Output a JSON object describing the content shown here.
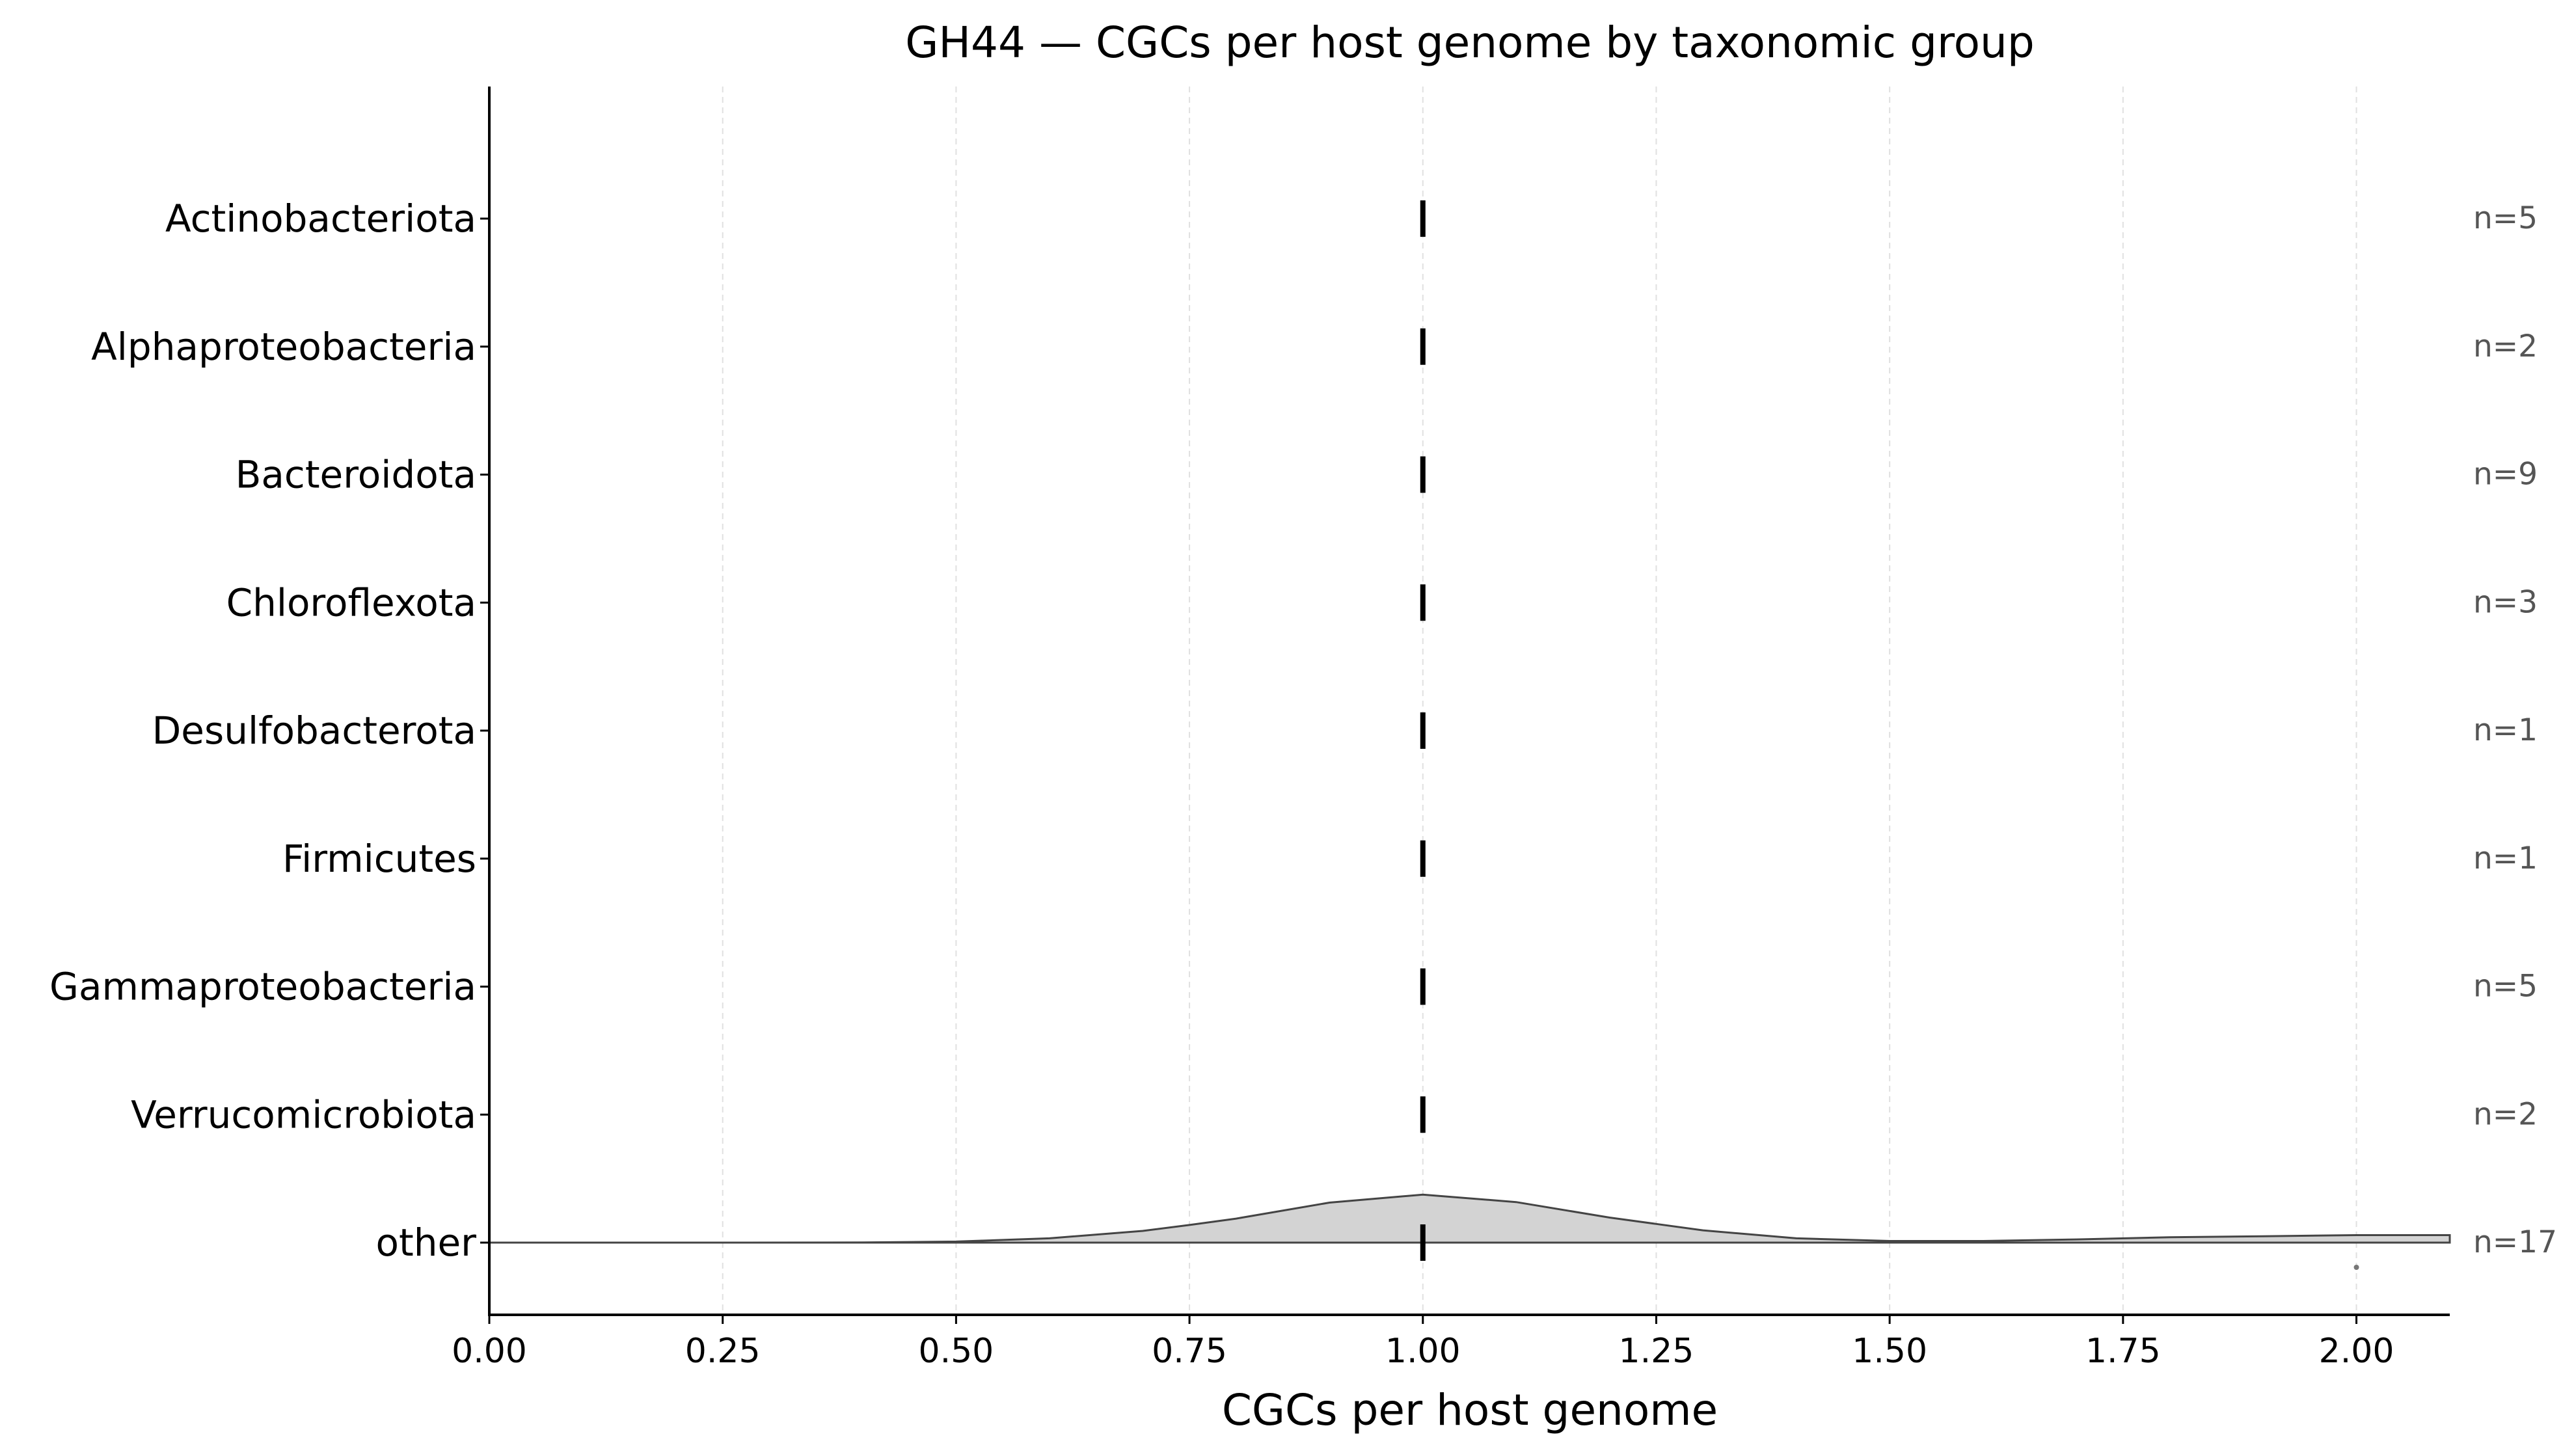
{
  "chart_data": {
    "type": "violin",
    "title": "GH44 — CGCs per host genome by taxonomic group",
    "xlabel": "CGCs per host genome",
    "ylabel": "",
    "xlim": [
      0.0,
      2.1
    ],
    "x_ticks": [
      "0.00",
      "0.25",
      "0.50",
      "0.75",
      "1.00",
      "1.25",
      "1.50",
      "1.75",
      "2.00"
    ],
    "x_tick_values": [
      0.0,
      0.25,
      0.5,
      0.75,
      1.0,
      1.25,
      1.5,
      1.75,
      2.0
    ],
    "grid": "x-dashed",
    "categories": [
      "Actinobacteriota",
      "Alphaproteobacteria",
      "Bacteroidota",
      "Chloroflexota",
      "Desulfobacterota",
      "Firmicutes",
      "Gammaproteobacteria",
      "Verrucomicrobiota",
      "other"
    ],
    "n_labels": [
      "n=5",
      "n=2",
      "n=9",
      "n=3",
      "n=1",
      "n=1",
      "n=5",
      "n=2",
      "n=17"
    ],
    "medians": [
      1,
      1,
      1,
      1,
      1,
      1,
      1,
      1,
      1
    ],
    "outliers": [
      {
        "category": "other",
        "x": 2.0
      }
    ],
    "density": [
      {
        "category": "other",
        "x": [
          0.0,
          0.25,
          0.4,
          0.5,
          0.6,
          0.7,
          0.75,
          0.8,
          0.9,
          1.0,
          1.1,
          1.2,
          1.25,
          1.3,
          1.4,
          1.5,
          1.6,
          1.7,
          1.8,
          1.9,
          2.0,
          2.1
        ],
        "y": [
          0.0,
          0.0,
          0.003,
          0.02,
          0.08,
          0.22,
          0.33,
          0.45,
          0.75,
          0.9,
          0.76,
          0.47,
          0.35,
          0.23,
          0.08,
          0.03,
          0.03,
          0.06,
          0.1,
          0.12,
          0.14,
          0.14
        ]
      }
    ],
    "colors": {
      "violin_fill": "#d3d3d3",
      "violin_edge": "#444444",
      "median": "#000000",
      "grid": "#e0e0e0",
      "n_label": "#555555"
    }
  }
}
